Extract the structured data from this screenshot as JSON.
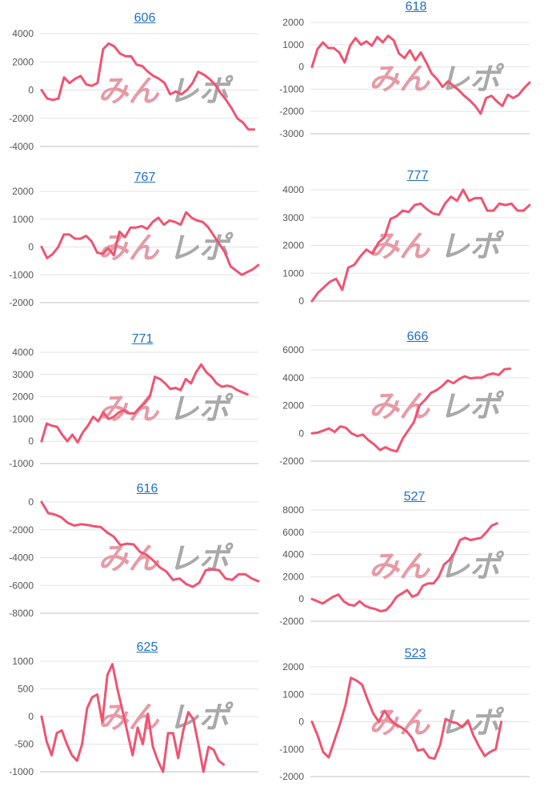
{
  "watermark": {
    "left": "みん",
    "right": "レポ"
  },
  "colors": {
    "line": "#ef5472",
    "title": "#1f6fc9"
  },
  "chart_data": [
    {
      "type": "line",
      "title": "606",
      "ylim": [
        -4000,
        4000
      ],
      "yticks": [
        -4000,
        -2000,
        0,
        2000,
        4000
      ],
      "values": [
        0,
        -600,
        -700,
        -600,
        900,
        500,
        800,
        1000,
        400,
        300,
        500,
        2900,
        3300,
        3100,
        2600,
        2400,
        2400,
        1800,
        1700,
        1300,
        1000,
        800,
        500,
        -300,
        -100,
        -300,
        0,
        500,
        1300,
        1100,
        800,
        400,
        -200,
        -700,
        -1300,
        -2000,
        -2300,
        -2800,
        -2800
      ]
    },
    {
      "type": "line",
      "title": "618",
      "ylim": [
        -3000,
        2000
      ],
      "yticks": [
        -3000,
        -2000,
        -1000,
        0,
        1000,
        2000
      ],
      "values": [
        0,
        800,
        1100,
        850,
        850,
        650,
        200,
        950,
        1300,
        1000,
        1150,
        950,
        1350,
        1100,
        1400,
        1200,
        600,
        400,
        750,
        300,
        650,
        200,
        -300,
        -550,
        -900,
        -650,
        -850,
        -1050,
        -1300,
        -1500,
        -1750,
        -2100,
        -1400,
        -1300,
        -1550,
        -1750,
        -1250,
        -1400,
        -1250,
        -950,
        -700
      ]
    },
    {
      "type": "line",
      "title": "767",
      "ylim": [
        -2000,
        2000
      ],
      "yticks": [
        -2000,
        -1000,
        0,
        1000,
        2000
      ],
      "values": [
        0,
        -400,
        -250,
        0,
        450,
        450,
        300,
        300,
        400,
        200,
        -200,
        -250,
        -50,
        -300,
        550,
        350,
        700,
        700,
        750,
        650,
        900,
        1050,
        800,
        950,
        900,
        800,
        1250,
        1050,
        950,
        900,
        700,
        400,
        100,
        -200,
        -700,
        -850,
        -1000,
        -900,
        -800,
        -650
      ]
    },
    {
      "type": "line",
      "title": "777",
      "ylim": [
        0,
        4000
      ],
      "yticks": [
        0,
        1000,
        2000,
        3000,
        4000
      ],
      "values": [
        0,
        300,
        500,
        700,
        800,
        400,
        1200,
        1300,
        1600,
        1850,
        1700,
        2100,
        2300,
        2950,
        3050,
        3250,
        3200,
        3450,
        3500,
        3300,
        3150,
        3100,
        3500,
        3750,
        3600,
        4000,
        3600,
        3700,
        3700,
        3250,
        3250,
        3500,
        3450,
        3500,
        3250,
        3250,
        3450
      ]
    },
    {
      "type": "line",
      "title": "771",
      "ylim": [
        -1000,
        4000
      ],
      "yticks": [
        -1000,
        0,
        1000,
        2000,
        3000,
        4000
      ],
      "values": [
        0,
        800,
        700,
        650,
        300,
        0,
        300,
        -50,
        400,
        700,
        1100,
        900,
        1300,
        1000,
        1100,
        1300,
        1400,
        1250,
        1250,
        1500,
        1700,
        2000,
        2900,
        2800,
        2600,
        2350,
        2400,
        2300,
        2800,
        2600,
        3100,
        3450,
        3100,
        2900,
        2600,
        2450,
        2500,
        2450,
        2300,
        2200,
        2100
      ]
    },
    {
      "type": "line",
      "title": "666",
      "ylim": [
        -2000,
        6000
      ],
      "yticks": [
        -2000,
        0,
        2000,
        4000,
        6000
      ],
      "values": [
        0,
        50,
        200,
        350,
        100,
        500,
        400,
        0,
        -200,
        -100,
        -500,
        -800,
        -1200,
        -1000,
        -1200,
        -1300,
        -400,
        200,
        800,
        2000,
        2400,
        2900,
        3100,
        3400,
        3800,
        3600,
        3900,
        4100,
        3950,
        4000,
        4000,
        4200,
        4300,
        4200,
        4600,
        4650
      ]
    },
    {
      "type": "line",
      "title": "616",
      "ylim": [
        -8000,
        0
      ],
      "yticks": [
        -8000,
        -6000,
        -4000,
        -2000,
        0
      ],
      "values": [
        0,
        -800,
        -900,
        -1100,
        -1500,
        -1700,
        -1600,
        -1650,
        -1750,
        -1800,
        -2200,
        -2500,
        -3100,
        -3000,
        -3050,
        -3600,
        -3800,
        -4200,
        -4700,
        -5000,
        -5600,
        -5500,
        -5900,
        -6100,
        -5800,
        -4900,
        -4850,
        -4900,
        -5500,
        -5600,
        -5200,
        -5200,
        -5500,
        -5700
      ]
    },
    {
      "type": "line",
      "title": "527",
      "ylim": [
        -2000,
        8000
      ],
      "yticks": [
        -2000,
        0,
        2000,
        4000,
        6000,
        8000
      ],
      "values": [
        0,
        -200,
        -400,
        -100,
        200,
        400,
        -200,
        -500,
        -600,
        -200,
        -600,
        -800,
        -900,
        -1100,
        -1000,
        -500,
        200,
        500,
        800,
        200,
        400,
        1200,
        1400,
        1400,
        2000,
        3100,
        3500,
        4200,
        5300,
        5500,
        5300,
        5400,
        5500,
        6000,
        6600,
        6800
      ]
    },
    {
      "type": "line",
      "title": "625",
      "ylim": [
        -1000,
        1000
      ],
      "yticks": [
        -1000,
        -500,
        0,
        500,
        1000
      ],
      "values": [
        0,
        -450,
        -700,
        -300,
        -250,
        -500,
        -700,
        -800,
        -500,
        150,
        350,
        400,
        -100,
        750,
        950,
        500,
        100,
        -300,
        -700,
        -200,
        -500,
        50,
        -550,
        -800,
        -1000,
        -300,
        -300,
        -750,
        -250,
        80,
        -50,
        -500,
        -1000,
        -550,
        -600,
        -800,
        -870
      ]
    },
    {
      "type": "line",
      "title": "523",
      "ylim": [
        -2000,
        2000
      ],
      "yticks": [
        -2000,
        -1000,
        0,
        1000,
        2000
      ],
      "values": [
        0,
        -500,
        -1100,
        -1300,
        -700,
        -100,
        600,
        1600,
        1500,
        1350,
        800,
        300,
        0,
        400,
        100,
        -100,
        -200,
        -350,
        -600,
        -1050,
        -1000,
        -1300,
        -1350,
        -850,
        100,
        0,
        -50,
        -200,
        50,
        -500,
        -900,
        -1250,
        -1100,
        -1000,
        0
      ]
    }
  ]
}
